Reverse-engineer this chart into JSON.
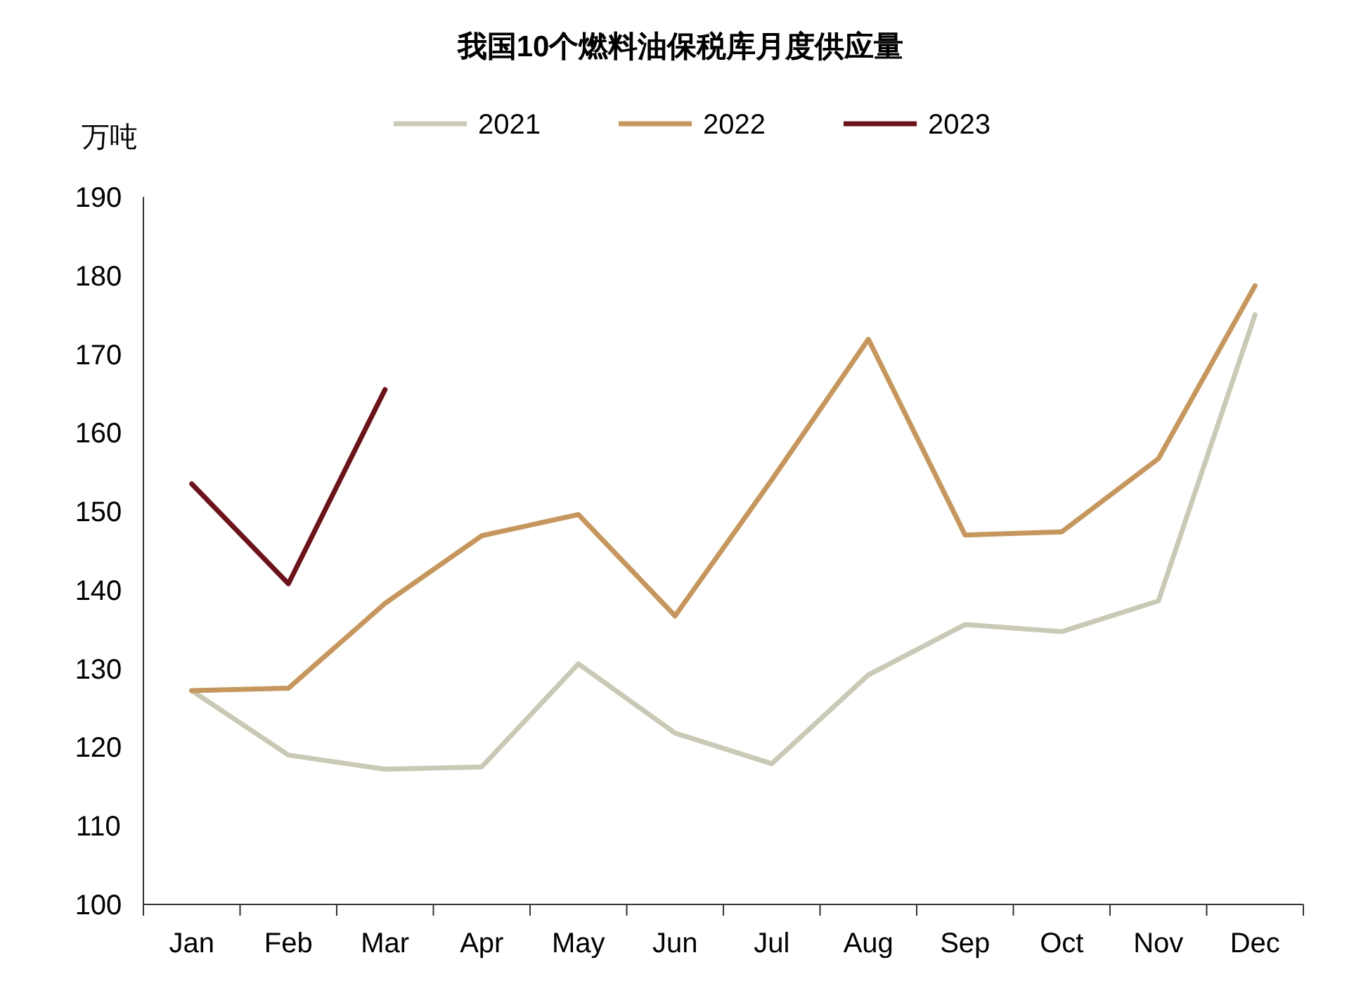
{
  "chart_data": {
    "type": "line",
    "title": "我国10个燃料油保税库月度供应量",
    "ylabel": "万吨",
    "categories": [
      "Jan",
      "Feb",
      "Mar",
      "Apr",
      "May",
      "Jun",
      "Jul",
      "Aug",
      "Sep",
      "Oct",
      "Nov",
      "Dec"
    ],
    "series": [
      {
        "name": "2021",
        "color": "#c9c9b6",
        "values": [
          127.2,
          119.0,
          117.2,
          117.5,
          130.6,
          121.8,
          117.9,
          129.2,
          135.6,
          134.7,
          138.6,
          175.0
        ]
      },
      {
        "name": "2022",
        "color": "#c8965a",
        "values": [
          127.2,
          127.5,
          138.3,
          146.9,
          149.6,
          136.7,
          154.0,
          171.9,
          147.0,
          147.4,
          156.7,
          178.7
        ]
      },
      {
        "name": "2023",
        "color": "#6e1118",
        "values": [
          153.5,
          140.8,
          165.5,
          null,
          null,
          null,
          null,
          null,
          null,
          null,
          null,
          null
        ]
      }
    ],
    "ylim": [
      100,
      190
    ],
    "yticks": [
      100,
      110,
      120,
      130,
      140,
      150,
      160,
      170,
      180,
      190
    ],
    "legend": "top",
    "grid": false,
    "marker": "none",
    "line_style": "solid"
  }
}
